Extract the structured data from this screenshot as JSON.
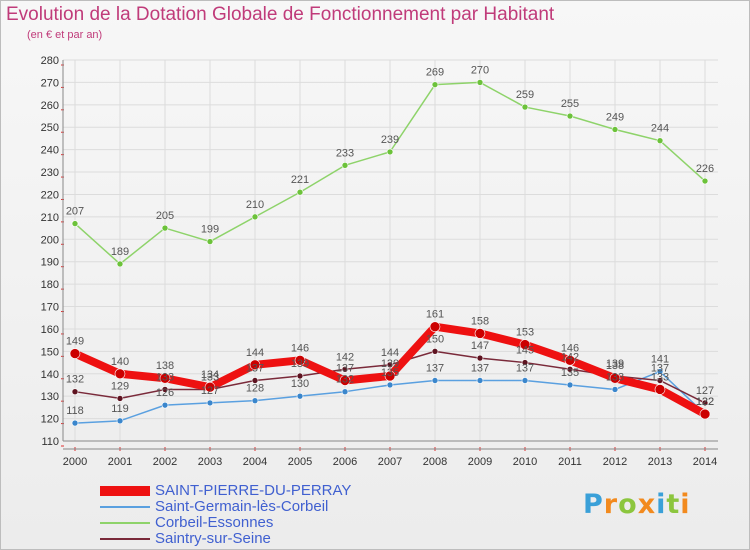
{
  "title": "Evolution de la Dotation Globale de Fonctionnement par Habitant",
  "subtitle": "(en € et par an)",
  "logo": {
    "text": "Proxiti",
    "letter_colors": [
      "#3aa0d8",
      "#f28a1e",
      "#8cc63e",
      "#f28a1e",
      "#3aa0d8",
      "#8cc63e",
      "#f28a1e"
    ]
  },
  "colors": {
    "title": "#c03b7a",
    "grid": "#dcdcdc",
    "axis": "#888888",
    "tick_text": "#333333",
    "label_text": "#555555",
    "legend_text": "#4060d0",
    "accent_marks": "#e03030"
  },
  "chart_data": {
    "type": "line",
    "title": "Evolution de la Dotation Globale de Fonctionnement par Habitant",
    "subtitle": "(en € et par an)",
    "xlabel": "",
    "ylabel": "",
    "x": [
      "2000",
      "2001",
      "2002",
      "2003",
      "2004",
      "2005",
      "2006",
      "2007",
      "2008",
      "2009",
      "2010",
      "2011",
      "2012",
      "2013",
      "2014"
    ],
    "ylim": [
      110,
      280
    ],
    "yticks": [
      110,
      120,
      130,
      140,
      150,
      160,
      170,
      180,
      190,
      200,
      210,
      220,
      230,
      240,
      250,
      260,
      270,
      280
    ],
    "grid": true,
    "legend_position": "bottom-left",
    "series": [
      {
        "name": "SAINT-PIERRE-DU-PERRAY",
        "color": "#ee1111",
        "marker_color": "#cc0000",
        "width": 8,
        "marker_r": 5,
        "values": [
          149,
          140,
          138,
          134,
          144,
          146,
          137,
          139,
          161,
          158,
          153,
          146,
          138,
          133,
          122
        ],
        "labels": [
          "149",
          "140",
          "138",
          "134",
          "144",
          "146",
          "137",
          "139",
          "161",
          "158",
          "153",
          "146",
          "138",
          "133",
          "122"
        ],
        "label_pos": [
          "above",
          "above",
          "above",
          "above",
          "above",
          "above",
          "above",
          "above",
          "above",
          "above",
          "above",
          "above",
          "above",
          "above",
          "above"
        ]
      },
      {
        "name": "Saint-Germain-lès-Corbeil",
        "color": "#5aa0e0",
        "marker_color": "#3a86cc",
        "width": 1.5,
        "marker_r": 3,
        "values": [
          118,
          119,
          126,
          127,
          128,
          130,
          132,
          135,
          137,
          137,
          137,
          135,
          133,
          141,
          122
        ],
        "labels": [
          "118",
          "119",
          "126",
          "127",
          "128",
          "130",
          "132",
          "135",
          "137",
          "137",
          "137",
          "135",
          "133",
          "141",
          "122"
        ],
        "label_pos": [
          "above",
          "above",
          "above",
          "above",
          "above",
          "above",
          "above",
          "above",
          "above",
          "above",
          "above",
          "above",
          "above",
          "above",
          "above"
        ]
      },
      {
        "name": "Corbeil-Essonnes",
        "color": "#8ed36a",
        "marker_color": "#6cc23a",
        "width": 1.5,
        "marker_r": 3,
        "values": [
          207,
          189,
          205,
          199,
          210,
          221,
          233,
          239,
          269,
          270,
          259,
          255,
          249,
          244,
          226
        ],
        "labels": [
          "207",
          "189",
          "205",
          "199",
          "210",
          "221",
          "233",
          "239",
          "269",
          "270",
          "259",
          "255",
          "249",
          "244",
          "226"
        ],
        "label_pos": [
          "above",
          "above",
          "above",
          "above",
          "above",
          "above",
          "above",
          "above",
          "above",
          "above",
          "above",
          "above",
          "above",
          "above",
          "above"
        ]
      },
      {
        "name": "Saintry-sur-Seine",
        "color": "#7a2a3a",
        "marker_color": "#5e1320",
        "width": 1.5,
        "marker_r": 3,
        "values": [
          132,
          129,
          133,
          133,
          137,
          139,
          142,
          144,
          150,
          147,
          145,
          142,
          139,
          137,
          127
        ],
        "labels": [
          "132",
          "129",
          "133",
          "133",
          "137",
          "139",
          "142",
          "144",
          "150",
          "147",
          "145",
          "142",
          "139",
          "137",
          "127"
        ],
        "label_pos": [
          "above",
          "above",
          "above",
          "above",
          "above",
          "above",
          "above",
          "above",
          "above",
          "above",
          "above",
          "above",
          "above",
          "above",
          "above"
        ]
      }
    ]
  }
}
